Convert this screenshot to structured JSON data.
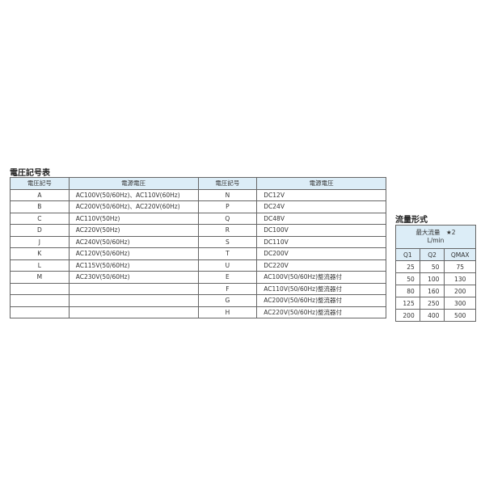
{
  "voltage_table": {
    "title": "電圧記号表",
    "headers": [
      "電圧記号",
      "電源電圧",
      "電圧記号",
      "電源電圧"
    ],
    "left_rows": [
      [
        "A",
        "AC100V(50/60Hz)、AC110V(60Hz)"
      ],
      [
        "B",
        "AC200V(50/60Hz)、AC220V(60Hz)"
      ],
      [
        "C",
        "AC110V(50Hz)"
      ],
      [
        "D",
        "AC220V(50Hz)"
      ],
      [
        "J",
        "AC240V(50/60Hz)"
      ],
      [
        "K",
        "AC120V(50/60Hz)"
      ],
      [
        "L",
        "AC115V(50/60Hz)"
      ],
      [
        "M",
        "AC230V(50/60Hz)"
      ],
      [
        "",
        ""
      ],
      [
        "",
        ""
      ],
      [
        "",
        ""
      ]
    ],
    "right_rows": [
      [
        "N",
        "DC12V"
      ],
      [
        "P",
        "DC24V"
      ],
      [
        "Q",
        "DC48V"
      ],
      [
        "R",
        "DC100V"
      ],
      [
        "S",
        "DC110V"
      ],
      [
        "T",
        "DC200V"
      ],
      [
        "U",
        "DC220V"
      ],
      [
        "E",
        "AC100V(50/60Hz)整流器付"
      ],
      [
        "F",
        "AC110V(50/60Hz)整流器付"
      ],
      [
        "G",
        "AC200V(50/60Hz)整流器付"
      ],
      [
        "H",
        "AC220V(50/60Hz)整流器付"
      ]
    ]
  },
  "flow_table": {
    "title": "流量形式",
    "header_main": "最大流量　★2",
    "header_unit": "L/min",
    "columns": [
      "Q1",
      "Q2",
      "QMAX"
    ],
    "rows": [
      [
        "25",
        "50",
        "75"
      ],
      [
        "50",
        "100",
        "130"
      ],
      [
        "80",
        "160",
        "200"
      ],
      [
        "125",
        "250",
        "300"
      ],
      [
        "200",
        "400",
        "500"
      ]
    ]
  }
}
